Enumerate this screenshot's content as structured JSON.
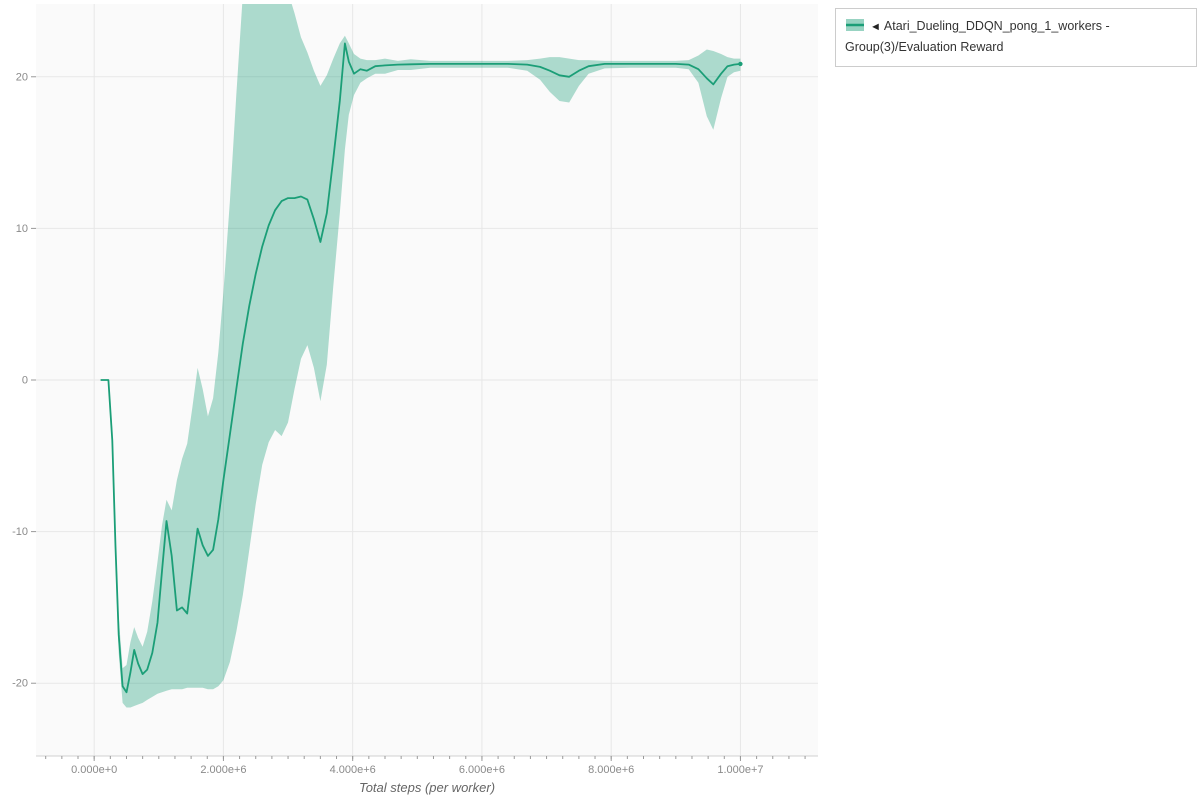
{
  "page": {
    "background": "#ffffff"
  },
  "legend": {
    "marker_glyph": "◄",
    "items": [
      {
        "label": "Atari_Dueling_DDQN_pong_1_workers - Group(3)/Evaluation Reward"
      }
    ]
  },
  "chart_data": {
    "type": "line",
    "title": "",
    "xlabel": "Total steps (per worker)",
    "ylabel": "",
    "xlim": [
      -900000,
      11200000
    ],
    "ylim": [
      -24.8,
      24.8
    ],
    "grid": true,
    "legend_position": "top-right",
    "plot_bg": "#fafafa",
    "grid_color": "#e7e7e7",
    "tick_color": "#999999",
    "tick_label_color": "#8a8a8a",
    "axis_color": "#d0d0d0",
    "axis_title_color": "#666666",
    "x_minor_tick_step": 250000,
    "x_ticks": [
      {
        "value": 0,
        "label": "0.000e+0"
      },
      {
        "value": 2000000,
        "label": "2.000e+6"
      },
      {
        "value": 4000000,
        "label": "4.000e+6"
      },
      {
        "value": 6000000,
        "label": "6.000e+6"
      },
      {
        "value": 8000000,
        "label": "8.000e+6"
      },
      {
        "value": 10000000,
        "label": "1.000e+7"
      }
    ],
    "y_ticks": [
      {
        "value": -20,
        "label": "-20"
      },
      {
        "value": -10,
        "label": "-10"
      },
      {
        "value": 0,
        "label": "0"
      },
      {
        "value": 10,
        "label": "10"
      },
      {
        "value": 20,
        "label": "20"
      }
    ],
    "series": [
      {
        "name": "Atari_Dueling_DDQN_pong_1_workers - Group(3)/Evaluation Reward",
        "color": "#1b9e77",
        "band_opacity": 0.35,
        "x": [
          100000,
          220000,
          280000,
          330000,
          380000,
          440000,
          500000,
          560000,
          620000,
          680000,
          750000,
          820000,
          900000,
          980000,
          1050000,
          1120000,
          1200000,
          1280000,
          1360000,
          1440000,
          1520000,
          1600000,
          1680000,
          1760000,
          1840000,
          1920000,
          2000000,
          2100000,
          2200000,
          2300000,
          2400000,
          2500000,
          2600000,
          2700000,
          2800000,
          2900000,
          3000000,
          3100000,
          3200000,
          3300000,
          3400000,
          3500000,
          3600000,
          3700000,
          3800000,
          3880000,
          3940000,
          4020000,
          4120000,
          4220000,
          4350000,
          4500000,
          4700000,
          4900000,
          5200000,
          5600000,
          6000000,
          6400000,
          6700000,
          6900000,
          7050000,
          7200000,
          7350000,
          7500000,
          7650000,
          7900000,
          8300000,
          8700000,
          9000000,
          9200000,
          9350000,
          9480000,
          9580000,
          9700000,
          9800000,
          9900000,
          10000000
        ],
        "mean": [
          0,
          0,
          -4,
          -11,
          -16.8,
          -20.2,
          -20.6,
          -19.3,
          -17.8,
          -18.7,
          -19.4,
          -19.1,
          -18,
          -16,
          -12.6,
          -9.3,
          -11.6,
          -15.2,
          -15,
          -15.4,
          -12.6,
          -9.8,
          -10.9,
          -11.6,
          -11.2,
          -9.2,
          -6.6,
          -3.6,
          -0.6,
          2.4,
          4.9,
          7,
          8.8,
          10.2,
          11.2,
          11.8,
          12,
          12,
          12.1,
          11.9,
          10.6,
          9.1,
          11,
          14.6,
          18.4,
          22.2,
          21,
          20.2,
          20.5,
          20.4,
          20.7,
          20.75,
          20.8,
          20.82,
          20.85,
          20.85,
          20.85,
          20.85,
          20.8,
          20.65,
          20.4,
          20.1,
          20,
          20.4,
          20.7,
          20.85,
          20.85,
          20.85,
          20.85,
          20.8,
          20.5,
          19.9,
          19.5,
          20.2,
          20.7,
          20.8,
          20.85
        ],
        "lower": [
          0,
          0,
          -4.8,
          -12,
          -18,
          -21.3,
          -21.6,
          -21.6,
          -21.5,
          -21.4,
          -21.3,
          -21.1,
          -20.9,
          -20.7,
          -20.6,
          -20.5,
          -20.4,
          -20.4,
          -20.4,
          -20.3,
          -20.3,
          -20.3,
          -20.3,
          -20.4,
          -20.4,
          -20.2,
          -19.8,
          -18.6,
          -16.6,
          -14.2,
          -11.2,
          -8.2,
          -5.6,
          -4.1,
          -3.3,
          -3.7,
          -2.8,
          -0.6,
          1.4,
          2.3,
          0.8,
          -1.4,
          1,
          6.2,
          11,
          15.2,
          17.5,
          18.8,
          19.6,
          19.9,
          20.2,
          20.2,
          20.45,
          20.45,
          20.6,
          20.6,
          20.6,
          20.6,
          20.4,
          19.8,
          19,
          18.4,
          18.3,
          19.4,
          20.2,
          20.55,
          20.6,
          20.6,
          20.6,
          20.5,
          19.6,
          17.4,
          16.5,
          18.6,
          20,
          20.3,
          20.4
        ],
        "upper": [
          0,
          0,
          -3.2,
          -10,
          -15.6,
          -19,
          -18.8,
          -17.3,
          -16.3,
          -17,
          -17.6,
          -16.6,
          -14.6,
          -12,
          -9.6,
          -7.9,
          -8.6,
          -6.6,
          -5.2,
          -4.2,
          -1.8,
          0.8,
          -0.6,
          -2.4,
          -1.2,
          1.8,
          5.8,
          11.8,
          18.8,
          25.4,
          26,
          26.2,
          26.2,
          26.2,
          26,
          26,
          25.6,
          24.2,
          22.6,
          21.6,
          20.4,
          19.4,
          20.1,
          21.2,
          22.2,
          22.7,
          22.2,
          21.5,
          21.2,
          21.1,
          21.1,
          21.2,
          21.05,
          21.15,
          21.05,
          21.05,
          21.05,
          21.05,
          21.1,
          21.2,
          21.3,
          21.3,
          21.2,
          21.1,
          21.1,
          21.05,
          21.05,
          21.05,
          21.05,
          21.1,
          21.4,
          21.8,
          21.7,
          21.5,
          21.3,
          21.2,
          21.2
        ]
      }
    ]
  }
}
